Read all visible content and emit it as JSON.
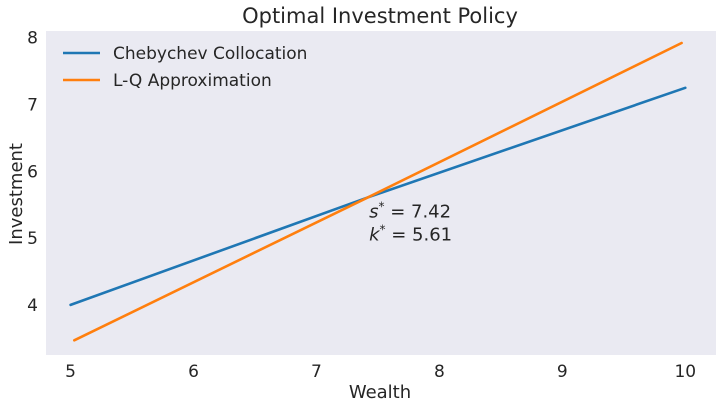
{
  "chart_data": {
    "type": "line",
    "title": "Optimal Investment Policy",
    "xlabel": "Wealth",
    "ylabel": "Investment",
    "xlim": [
      4.8,
      10.25
    ],
    "ylim": [
      3.25,
      8.1
    ],
    "xticks": [
      5,
      6,
      7,
      8,
      9,
      10
    ],
    "yticks": [
      4,
      5,
      6,
      7,
      8
    ],
    "grid": false,
    "background": "#eaeaf2",
    "legend_position": "top-left",
    "series": [
      {
        "name": "Chebychev Collocation",
        "color": "#1f77b4",
        "x": [
          5,
          7.42,
          10
        ],
        "y": [
          4.0,
          5.61,
          7.25
        ]
      },
      {
        "name": "L-Q Approximation",
        "color": "#ff7f0e",
        "x": [
          5.03,
          7.42,
          9.97
        ],
        "y": [
          3.47,
          5.61,
          7.92
        ]
      }
    ],
    "annotations": [
      {
        "symbol": "s",
        "sup": "*",
        "text": " = 7.42",
        "x": 7.42,
        "y": 5.61
      },
      {
        "symbol": "k",
        "sup": "*",
        "text": " = 5.61"
      }
    ]
  }
}
